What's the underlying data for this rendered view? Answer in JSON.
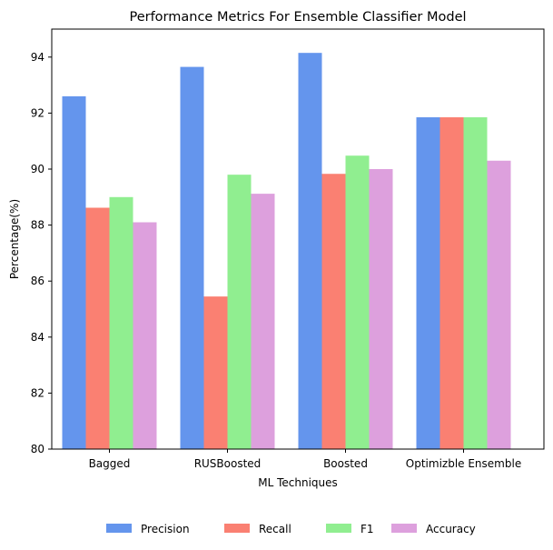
{
  "chart_data": {
    "type": "bar",
    "title": "Performance Metrics For Ensemble Classifier Model",
    "xlabel": "ML Techniques",
    "ylabel": "Percentage(%)",
    "ylim": [
      80,
      95
    ],
    "yticks": [
      80,
      82,
      84,
      86,
      88,
      90,
      92,
      94
    ],
    "categories": [
      "Bagged",
      "RUSBoosted",
      "Boosted",
      "Optimizble Ensemble"
    ],
    "series": [
      {
        "name": "Precision",
        "color": "#6495ED",
        "values": [
          92.6,
          93.65,
          94.15,
          91.85
        ]
      },
      {
        "name": "Recall",
        "color": "#FA8072",
        "values": [
          88.62,
          85.45,
          89.83,
          91.85
        ]
      },
      {
        "name": "F1",
        "color": "#90EE90",
        "values": [
          89.0,
          89.8,
          90.48,
          91.85
        ]
      },
      {
        "name": "Accuracy",
        "color": "#DDA0DD",
        "values": [
          88.1,
          89.12,
          90.0,
          90.3
        ]
      }
    ],
    "legend_position": "bottom-center",
    "grid": false
  }
}
